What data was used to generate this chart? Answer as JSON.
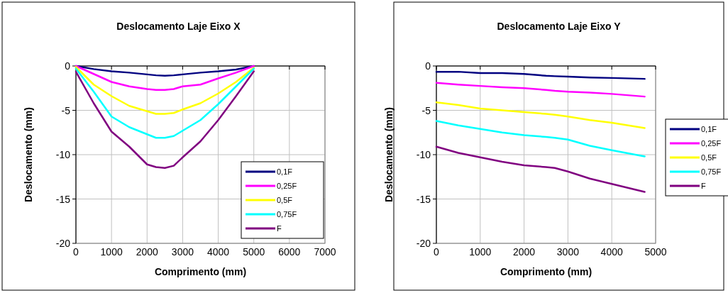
{
  "chart_data": [
    {
      "type": "line",
      "title": "Deslocamento Laje Eixo X",
      "xlabel": "Comprimento  (mm)",
      "ylabel": "Deslocamento (mm)",
      "x": [
        0,
        500,
        1000,
        1500,
        2000,
        2250,
        2500,
        2750,
        3000,
        3500,
        4000,
        4500,
        5000
      ],
      "xlim": [
        0,
        7000
      ],
      "xticks": [
        0,
        1000,
        2000,
        3000,
        4000,
        5000,
        6000,
        7000
      ],
      "ylim": [
        -20,
        0
      ],
      "yticks": [
        -20,
        -15,
        -10,
        -5,
        0
      ],
      "grid": true,
      "legend": "bottom right",
      "marker": "none",
      "line_style": "solid",
      "series": [
        {
          "name": "0,1F",
          "color": "#000080",
          "values": [
            0,
            -0.35,
            -0.6,
            -0.75,
            -0.95,
            -1.05,
            -1.1,
            -1.05,
            -0.95,
            -0.75,
            -0.6,
            -0.4,
            0
          ]
        },
        {
          "name": "0,25F",
          "color": "#ff00ff",
          "values": [
            0,
            -0.9,
            -1.8,
            -2.3,
            -2.6,
            -2.7,
            -2.7,
            -2.6,
            -2.3,
            -2.1,
            -1.4,
            -0.75,
            0
          ]
        },
        {
          "name": "0,5F",
          "color": "#ffff00",
          "values": [
            -0.1,
            -2.1,
            -3.4,
            -4.5,
            -5.1,
            -5.4,
            -5.4,
            -5.3,
            -4.9,
            -4.2,
            -3.1,
            -1.8,
            -0.2
          ]
        },
        {
          "name": "0,75F",
          "color": "#00ffff",
          "values": [
            -0.3,
            -2.9,
            -5.7,
            -6.9,
            -7.7,
            -8.1,
            -8.1,
            -7.9,
            -7.3,
            -6.1,
            -4.3,
            -2.3,
            -0.3
          ]
        },
        {
          "name": "F",
          "color": "#800080",
          "values": [
            -0.65,
            -4.2,
            -7.4,
            -9.1,
            -11.1,
            -11.4,
            -11.5,
            -11.25,
            -10.3,
            -8.5,
            -6.1,
            -3.4,
            -0.6
          ]
        }
      ]
    },
    {
      "type": "line",
      "title": "Deslocamento Laje Eixo Y",
      "xlabel": "Comprimento (mm)",
      "ylabel": "Deslocamento (mm)",
      "x": [
        0,
        500,
        1000,
        1500,
        2000,
        2500,
        2700,
        3000,
        3500,
        4000,
        4750
      ],
      "xlim": [
        0,
        5000
      ],
      "xticks": [
        0,
        1000,
        2000,
        3000,
        4000,
        5000
      ],
      "ylim": [
        -20,
        0
      ],
      "yticks": [
        -20,
        -15,
        -10,
        -5,
        0
      ],
      "grid": true,
      "legend": "right",
      "marker": "none",
      "line_style": "solid",
      "series": [
        {
          "name": "0,1F",
          "color": "#000080",
          "values": [
            -0.65,
            -0.65,
            -0.8,
            -0.8,
            -0.9,
            -1.1,
            -1.15,
            -1.2,
            -1.3,
            -1.35,
            -1.45
          ]
        },
        {
          "name": "0,25F",
          "color": "#ff00ff",
          "values": [
            -1.9,
            -2.1,
            -2.25,
            -2.4,
            -2.5,
            -2.7,
            -2.8,
            -2.9,
            -3.0,
            -3.15,
            -3.45
          ]
        },
        {
          "name": "0,5F",
          "color": "#ffff00",
          "values": [
            -4.1,
            -4.4,
            -4.8,
            -5.0,
            -5.2,
            -5.4,
            -5.5,
            -5.7,
            -6.1,
            -6.4,
            -7.0
          ]
        },
        {
          "name": "0,75F",
          "color": "#00ffff",
          "values": [
            -6.2,
            -6.7,
            -7.1,
            -7.5,
            -7.8,
            -8.0,
            -8.1,
            -8.3,
            -9.0,
            -9.5,
            -10.2
          ]
        },
        {
          "name": "F",
          "color": "#800080",
          "values": [
            -9.1,
            -9.8,
            -10.3,
            -10.8,
            -11.2,
            -11.4,
            -11.5,
            -11.9,
            -12.7,
            -13.3,
            -14.2
          ]
        }
      ]
    }
  ]
}
